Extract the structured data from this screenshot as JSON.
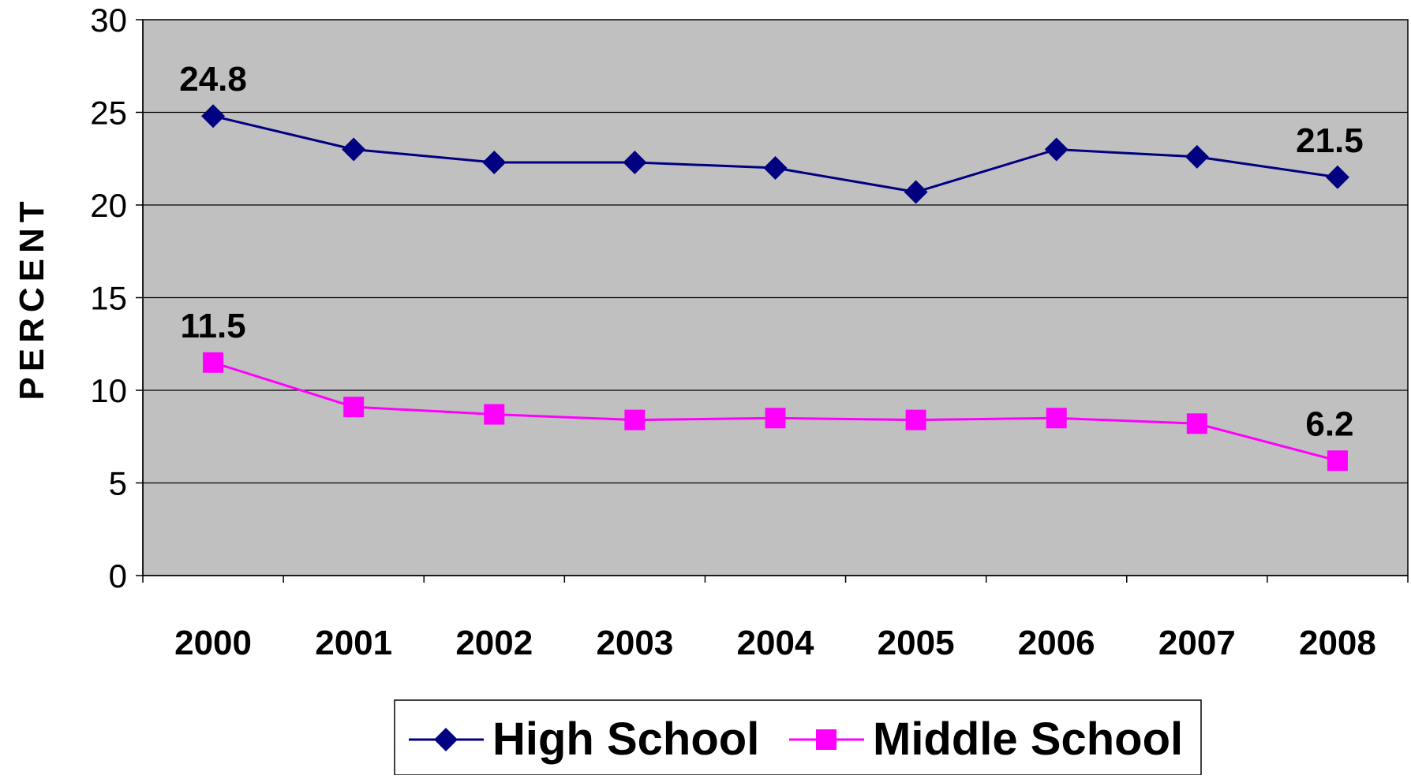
{
  "chart_data": {
    "type": "line",
    "title": "",
    "xlabel": "",
    "ylabel": "PERCENT",
    "ylim": [
      0,
      30
    ],
    "yticks": [
      0,
      5,
      10,
      15,
      20,
      25,
      30
    ],
    "categories": [
      "2000",
      "2001",
      "2002",
      "2003",
      "2004",
      "2005",
      "2006",
      "2007",
      "2008"
    ],
    "grid": true,
    "plot_background": "#c0c0c0",
    "legend_position": "bottom",
    "series": [
      {
        "name": "High School",
        "values": [
          24.8,
          23.0,
          22.3,
          22.3,
          22.0,
          20.7,
          23.0,
          22.6,
          21.5
        ],
        "color": "#000080",
        "marker": "diamond",
        "labels": [
          "24.8",
          "",
          "",
          "",
          "",
          "",
          "",
          "",
          "21.5"
        ]
      },
      {
        "name": "Middle School",
        "values": [
          11.5,
          9.1,
          8.7,
          8.4,
          8.5,
          8.4,
          8.5,
          8.2,
          6.2
        ],
        "color": "#ff00ff",
        "marker": "square",
        "labels": [
          "11.5",
          "",
          "",
          "",
          "",
          "",
          "",
          "",
          "6.2"
        ]
      }
    ]
  }
}
